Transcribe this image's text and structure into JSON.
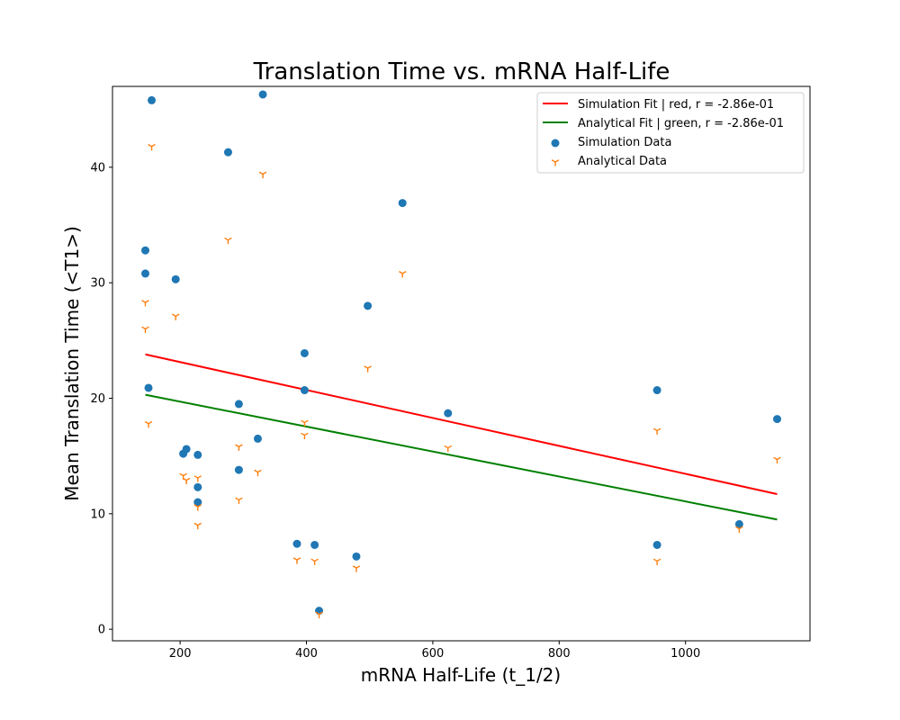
{
  "chart_data": {
    "type": "scatter",
    "title": "Translation Time vs. mRNA Half-Life",
    "xlabel": "mRNA Half-Life (t_1/2)",
    "ylabel": "Mean Translation Time (<T1>)",
    "xlim": [
      93,
      1197
    ],
    "ylim": [
      -1,
      47
    ],
    "xticks": [
      200,
      400,
      600,
      800,
      1000
    ],
    "yticks": [
      0,
      10,
      20,
      30,
      40
    ],
    "grid": false,
    "legend_position": "top-right",
    "series": [
      {
        "name": "Simulation Data",
        "kind": "points",
        "marker": "circle",
        "color": "#1f77b4",
        "points": [
          [
            155,
            45.8
          ],
          [
            331,
            46.3
          ],
          [
            276,
            41.3
          ],
          [
            552,
            36.9
          ],
          [
            145,
            32.8
          ],
          [
            145,
            30.8
          ],
          [
            193,
            30.3
          ],
          [
            497,
            28.0
          ],
          [
            397,
            23.9
          ],
          [
            150,
            20.9
          ],
          [
            397,
            20.7
          ],
          [
            624,
            18.7
          ],
          [
            955,
            20.7
          ],
          [
            1145,
            18.2
          ],
          [
            293,
            19.5
          ],
          [
            323,
            16.5
          ],
          [
            210,
            15.6
          ],
          [
            205,
            15.2
          ],
          [
            228,
            15.1
          ],
          [
            228,
            12.3
          ],
          [
            293,
            13.8
          ],
          [
            228,
            11.0
          ],
          [
            385,
            7.4
          ],
          [
            413,
            7.3
          ],
          [
            479,
            6.3
          ],
          [
            955,
            7.3
          ],
          [
            1085,
            9.1
          ],
          [
            420,
            1.6
          ]
        ]
      },
      {
        "name": "Analytical Data",
        "kind": "points",
        "marker": "tri_down",
        "color": "#ff7f0e",
        "points": [
          [
            155,
            41.8
          ],
          [
            331,
            39.4
          ],
          [
            276,
            33.7
          ],
          [
            552,
            30.8
          ],
          [
            145,
            28.3
          ],
          [
            145,
            26.0
          ],
          [
            193,
            27.1
          ],
          [
            497,
            22.6
          ],
          [
            397,
            17.9
          ],
          [
            150,
            17.8
          ],
          [
            397,
            16.8
          ],
          [
            624,
            15.7
          ],
          [
            955,
            17.2
          ],
          [
            1145,
            14.7
          ],
          [
            293,
            15.8
          ],
          [
            323,
            13.6
          ],
          [
            210,
            12.9
          ],
          [
            205,
            13.3
          ],
          [
            228,
            13.1
          ],
          [
            228,
            10.6
          ],
          [
            293,
            11.2
          ],
          [
            228,
            9.0
          ],
          [
            385,
            6.0
          ],
          [
            413,
            5.9
          ],
          [
            479,
            5.3
          ],
          [
            955,
            5.9
          ],
          [
            1085,
            8.7
          ],
          [
            420,
            1.3
          ]
        ]
      },
      {
        "name": "Simulation Fit |   red, r = -2.86e-01",
        "kind": "line",
        "color": "#ff0000",
        "points": [
          [
            145,
            23.8
          ],
          [
            1145,
            11.7
          ]
        ]
      },
      {
        "name": "Analytical Fit | green, r = -2.86e-01",
        "kind": "line",
        "color": "#008000",
        "points": [
          [
            145,
            20.3
          ],
          [
            1145,
            9.5
          ]
        ]
      }
    ],
    "legend_order": [
      2,
      3,
      0,
      1
    ]
  }
}
